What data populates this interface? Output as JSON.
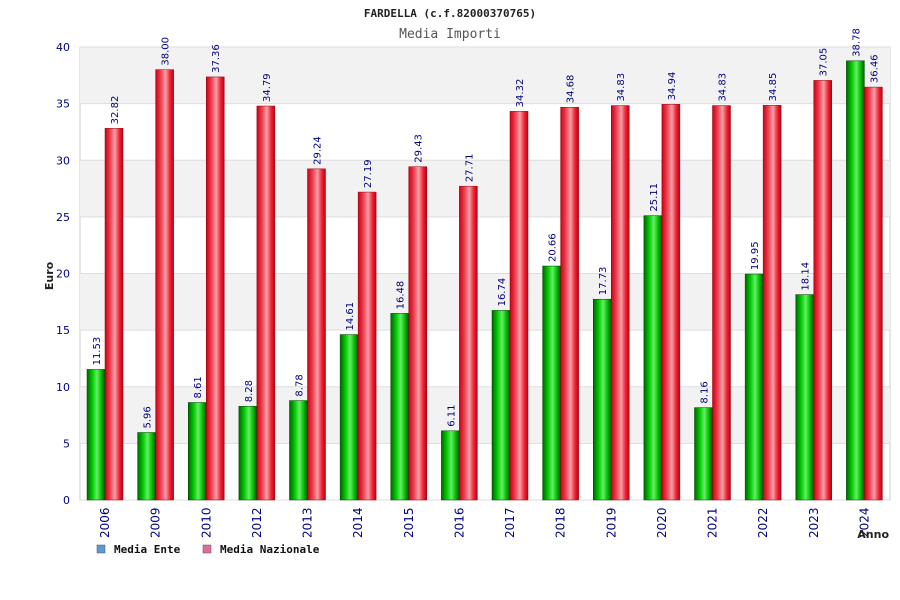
{
  "chart_data": {
    "type": "bar",
    "title": "FARDELLA (c.f.82000370765)",
    "subtitle": "Media Importi",
    "xlabel": "Anno",
    "ylabel": "Euro",
    "ylim": [
      0,
      40
    ],
    "yticks": [
      0,
      5,
      10,
      15,
      20,
      25,
      30,
      35,
      40
    ],
    "grid": true,
    "legend_position": "bottom-left",
    "categories": [
      "2006",
      "2009",
      "2010",
      "2012",
      "2013",
      "2014",
      "2015",
      "2016",
      "2017",
      "2018",
      "2019",
      "2020",
      "2021",
      "2022",
      "2023",
      "2024"
    ],
    "series": [
      {
        "name": "Media Ente",
        "legend_color": "#5b9bd5",
        "bar_color": "#00aa00",
        "values": [
          11.53,
          5.96,
          8.61,
          8.28,
          8.78,
          14.61,
          16.48,
          6.11,
          16.74,
          20.66,
          17.73,
          25.11,
          8.16,
          19.95,
          18.14,
          38.78
        ],
        "labels": [
          "11.53",
          "5.96",
          "8.61",
          "8.28",
          "8.78",
          "14.61",
          "16.48",
          "6.11",
          "16.74",
          "20.66",
          "17.73",
          "25.11",
          "8.16",
          "19.95",
          "18.14",
          "38.78"
        ]
      },
      {
        "name": "Media Nazionale",
        "legend_color": "#e06c9f",
        "bar_color": "#ee1122",
        "values": [
          32.82,
          38.0,
          37.36,
          34.79,
          29.24,
          27.19,
          29.43,
          27.71,
          34.32,
          34.68,
          34.83,
          34.94,
          34.83,
          34.85,
          37.05,
          36.46
        ],
        "labels": [
          "32.82",
          "38.00",
          "37.36",
          "34.79",
          "29.24",
          "27.19",
          "29.43",
          "27.71",
          "34.32",
          "34.68",
          "34.83",
          "34.94",
          "34.83",
          "34.85",
          "37.05",
          "36.46"
        ]
      }
    ]
  }
}
